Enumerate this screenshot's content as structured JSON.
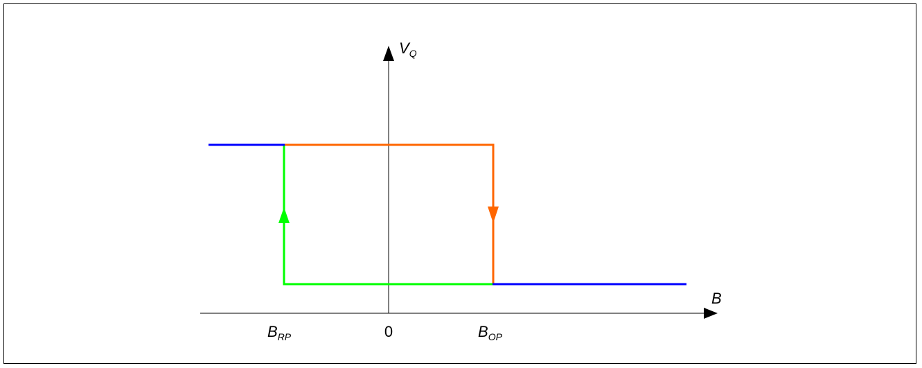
{
  "labels": {
    "y_axis": "V",
    "y_axis_sub": "Q",
    "x_axis": "B",
    "origin": "0",
    "brp": "B",
    "brp_sub": "RP",
    "bop": "B",
    "bop_sub": "OP"
  },
  "colors": {
    "axis": "#000000",
    "saturated": "#0000ff",
    "rising": "#00ff00",
    "falling": "#ff6600"
  }
}
